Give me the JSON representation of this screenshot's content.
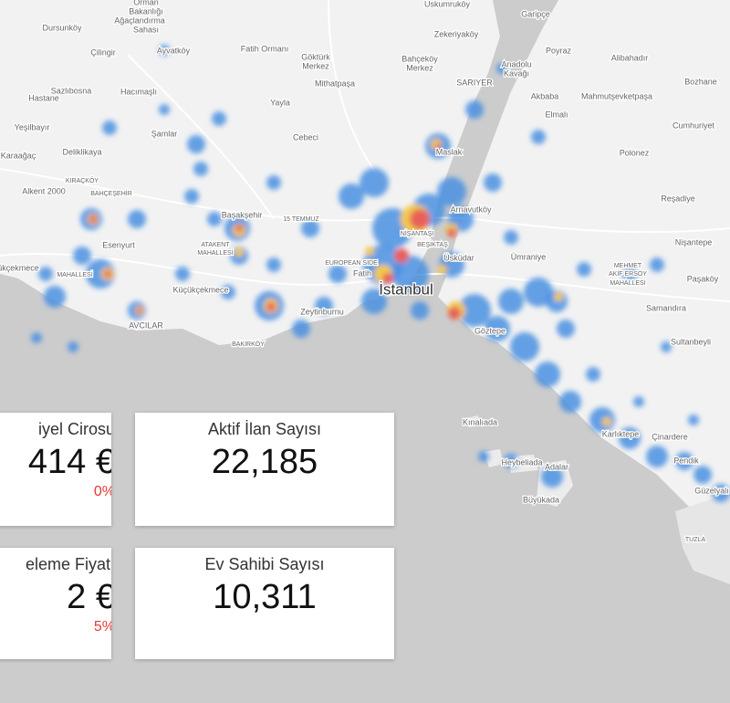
{
  "map": {
    "labels": [
      "Orman",
      "Bakanlığı",
      "Ağaçlandırma",
      "Sahası",
      "Dursunköy",
      "Fatih Ormanı",
      "Uskumruköy",
      "Zekeriyaköy",
      "Garipçe",
      "Poyraz",
      "Çilingir",
      "Ayvatköy",
      "Göktürk",
      "Merkez",
      "Bahçeköy",
      "Merkez",
      "Anadolu",
      "Kavağı",
      "Alibahadır",
      "Hastane",
      "Sazlıbosna",
      "Hacımaşlı",
      "Mithatpaşa",
      "SARIYER",
      "Akbaba",
      "Mahmutşevketpaşa",
      "Bozhane",
      "Yayla",
      "Yeşilbayır",
      "Şamlar",
      "Cebeci",
      "Elmalı",
      "Cumhuriyet",
      "Karaağaç",
      "Deliklikaya",
      "Maslak",
      "Polonez",
      "Alkent 2000",
      "KIRAÇKÖY",
      "BAHÇEŞEHİR",
      "Başakşehir",
      "15 TEMMUZ",
      "Reşadiye",
      "Arnavutköy",
      "Esenyurt",
      "ATAKENT",
      "MAHALLESİ",
      "NİŞANTAŞI",
      "BEŞİKTAŞ",
      "Ümraniye",
      "Nişantepe",
      "Üsküdar",
      "EUROPEAN SIDE",
      "Fatih",
      "MEHMET",
      "AKİF ERSOY",
      "MAHALLESİ",
      "Paşaköy",
      "ükçekmece",
      "MAHALLESİ",
      "Küçükçekmece",
      "İstanbul",
      "Zeytinburnu",
      "AVCILAR",
      "Samandıra",
      "Göztepe",
      "BAKIRKÖY",
      "Sultanbeyli",
      "Kınalıada",
      "Karlıktepe",
      "Çinardere",
      "Heybeliada",
      "Adalar",
      "Pendik",
      "Güzelyalı",
      "Büyükada",
      "TUZLA"
    ]
  },
  "cards": [
    {
      "title": "iyel Cirosu",
      "value": "414 €",
      "change": "0%"
    },
    {
      "title": "Aktif İlan Sayısı",
      "value": "22,185"
    },
    {
      "title": "eleme Fiyatı",
      "value": "2 €",
      "change": "5%"
    },
    {
      "title": "Ev Sahibi Sayısı",
      "value": "10,311"
    }
  ]
}
